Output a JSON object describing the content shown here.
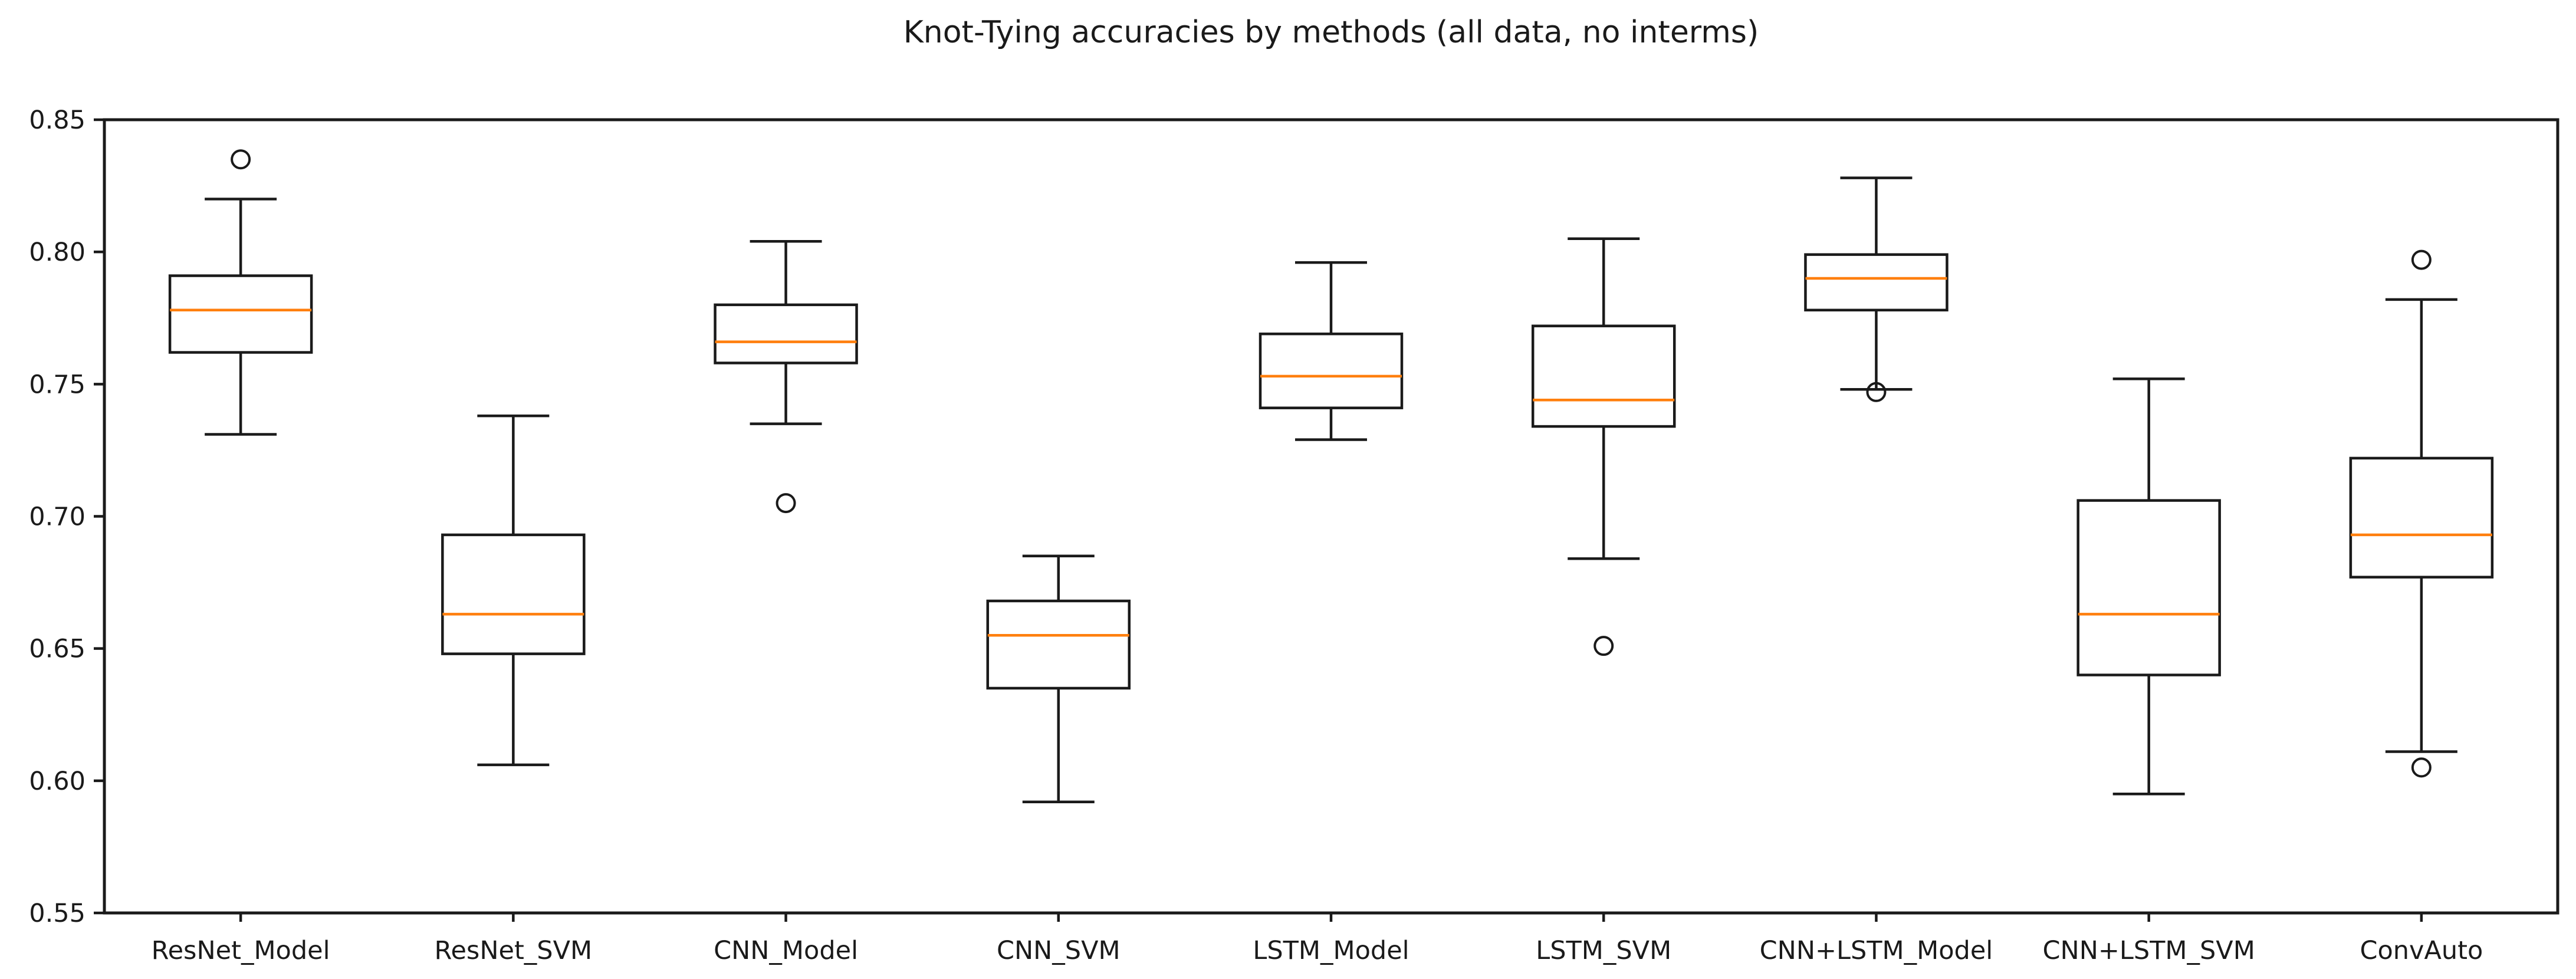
{
  "chart_data": {
    "type": "boxplot",
    "title": "Knot-Tying accuracies by methods (all data, no interms)",
    "xlabel": "",
    "ylabel": "",
    "ylim": [
      0.55,
      0.85
    ],
    "yticks": [
      "0.55",
      "0.60",
      "0.65",
      "0.70",
      "0.75",
      "0.80",
      "0.85"
    ],
    "grid": false,
    "legend": "none",
    "categories": [
      "ResNet_Model",
      "ResNet_SVM",
      "CNN_Model",
      "CNN_SVM",
      "LSTM_Model",
      "LSTM_SVM",
      "CNN+LSTM_Model",
      "CNN+LSTM_SVM",
      "ConvAuto"
    ],
    "series": [
      {
        "name": "ResNet_Model",
        "whislo": 0.731,
        "q1": 0.762,
        "med": 0.778,
        "q3": 0.791,
        "whishi": 0.82,
        "fliers": [
          0.835
        ]
      },
      {
        "name": "ResNet_SVM",
        "whislo": 0.606,
        "q1": 0.648,
        "med": 0.663,
        "q3": 0.693,
        "whishi": 0.738,
        "fliers": []
      },
      {
        "name": "CNN_Model",
        "whislo": 0.735,
        "q1": 0.758,
        "med": 0.766,
        "q3": 0.78,
        "whishi": 0.804,
        "fliers": [
          0.705
        ]
      },
      {
        "name": "CNN_SVM",
        "whislo": 0.592,
        "q1": 0.635,
        "med": 0.655,
        "q3": 0.668,
        "whishi": 0.685,
        "fliers": []
      },
      {
        "name": "LSTM_Model",
        "whislo": 0.729,
        "q1": 0.741,
        "med": 0.753,
        "q3": 0.769,
        "whishi": 0.796,
        "fliers": []
      },
      {
        "name": "LSTM_SVM",
        "whislo": 0.684,
        "q1": 0.734,
        "med": 0.744,
        "q3": 0.772,
        "whishi": 0.805,
        "fliers": [
          0.651
        ]
      },
      {
        "name": "CNN+LSTM_Model",
        "whislo": 0.748,
        "q1": 0.778,
        "med": 0.79,
        "q3": 0.799,
        "whishi": 0.828,
        "fliers": [
          0.747
        ]
      },
      {
        "name": "CNN+LSTM_SVM",
        "whislo": 0.595,
        "q1": 0.64,
        "med": 0.663,
        "q3": 0.706,
        "whishi": 0.752,
        "fliers": []
      },
      {
        "name": "ConvAuto",
        "whislo": 0.611,
        "q1": 0.677,
        "med": 0.693,
        "q3": 0.722,
        "whishi": 0.782,
        "fliers": [
          0.797,
          0.605
        ]
      }
    ],
    "colors": {
      "median": "#ff7f0e",
      "line": "#1a1a1a",
      "box_fill": "#ffffff",
      "background": "#ffffff"
    }
  }
}
